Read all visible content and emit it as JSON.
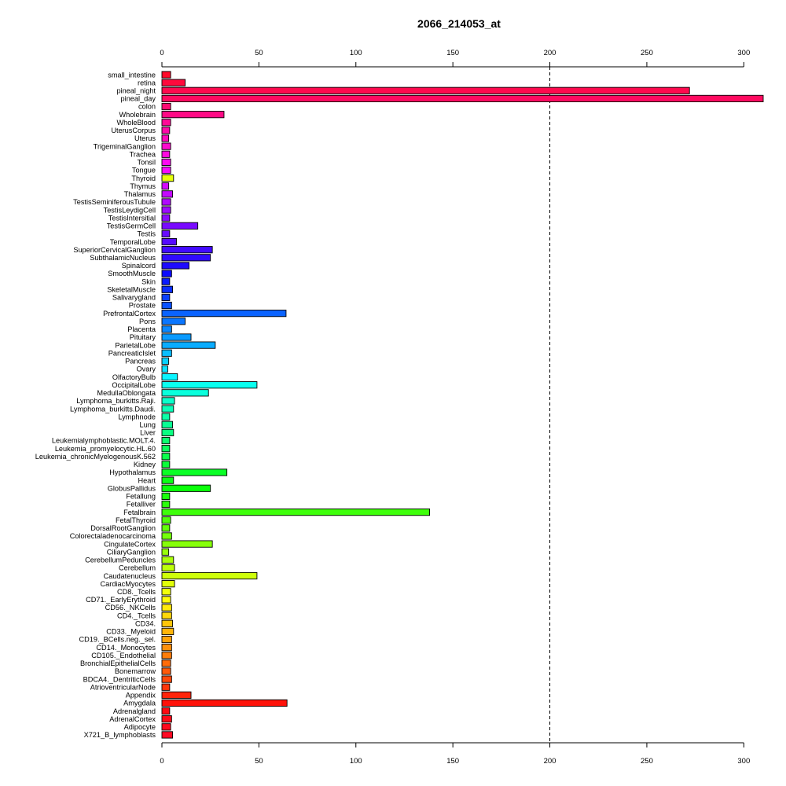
{
  "chart_data": {
    "type": "bar",
    "orientation": "horizontal",
    "title": "2066_214053_at",
    "xlabel": "",
    "ylabel": "",
    "xlim": [
      0,
      310
    ],
    "xticks": [
      0,
      50,
      100,
      150,
      200,
      250,
      300
    ],
    "xtick_labels": [
      "0",
      "50",
      "100",
      "150",
      "200",
      "250",
      "300"
    ],
    "axis_positions": [
      "top",
      "bottom"
    ],
    "reference_line": {
      "x": 200,
      "style": "dashed"
    },
    "grid": false,
    "legend": "none",
    "bar_outline_color": "#000000",
    "categories": [
      "small_intestine",
      "retina",
      "pineal_night",
      "pineal_day",
      "colon",
      "Wholebrain",
      "WholeBlood",
      "UterusCorpus",
      "Uterus",
      "TrigeminalGanglion",
      "Trachea",
      "Tonsil",
      "Tongue",
      "Thyroid",
      "Thymus",
      "Thalamus",
      "TestisSeminiferousTubule",
      "TestisLeydigCell",
      "TestisIntersitial",
      "TestisGermCell",
      "Testis",
      "TemporalLobe",
      "SuperiorCervicalGanglion",
      "SubthalamicNucleus",
      "Spinalcord",
      "SmoothMuscle",
      "Skin",
      "SkeletalMuscle",
      "Salivarygland",
      "Prostate",
      "PrefrontalCortex",
      "Pons",
      "Placenta",
      "Pituitary",
      "ParietalLobe",
      "PancreaticIslet",
      "Pancreas",
      "Ovary",
      "OlfactoryBulb",
      "OccipitalLobe",
      "MedullaOblongata",
      "Lymphoma_burkitts.Raji.",
      "Lymphoma_burkitts.Daudi.",
      "Lymphnode",
      "Lung",
      "Liver",
      "Leukemialymphoblastic.MOLT.4.",
      "Leukemia_promyelocytic.HL.60",
      "Leukemia_chronicMyelogenousK.562",
      "Kidney",
      "Hypothalamus",
      "Heart",
      "GlobusPallidus",
      "Fetallung",
      "Fetalliver",
      "Fetalbrain",
      "FetalThyroid",
      "DorsalRootGanglion",
      "Colorectaladenocarcinoma",
      "CingulateCortex",
      "CiliaryGanglion",
      "CerebellumPeduncles",
      "Cerebellum",
      "Caudatenucleus",
      "CardiacMyocytes",
      "CD8._Tcells",
      "CD71._EarlyErythroid",
      "CD56._NKCells",
      "CD4._Tcells",
      "CD34.",
      "CD33._Myeloid",
      "CD19._BCells.neg._sel.",
      "CD14._Monocytes",
      "CD105._Endothelial",
      "BronchialEpithelialCells",
      "Bonemarrow",
      "BDCA4._DentriticCells",
      "AtrioventricularNode",
      "Appendix",
      "Amygdala",
      "Adrenalgland",
      "AdrenalCortex",
      "Adipocyte",
      "X721_B_lymphoblasts"
    ],
    "values": [
      4.5,
      12,
      272,
      310,
      4.5,
      32,
      4.5,
      4,
      3.5,
      4.5,
      4,
      4.5,
      4.5,
      6,
      3.5,
      5.5,
      4.5,
      4.5,
      4,
      18.5,
      4,
      7.5,
      26,
      25,
      14,
      5,
      4,
      5.5,
      4,
      5,
      64,
      12,
      5,
      15,
      27.5,
      5,
      3.5,
      3,
      8,
      49,
      24,
      6.5,
      6,
      4,
      5.5,
      6,
      4,
      4,
      4,
      4,
      33.5,
      6,
      25,
      4,
      4,
      138,
      4.5,
      4,
      5,
      26,
      3.5,
      6,
      6.5,
      49,
      6.5,
      4.5,
      4.5,
      5,
      5,
      5.5,
      6,
      5,
      5,
      5,
      4.5,
      4.5,
      5,
      4,
      15,
      64.5,
      4,
      5,
      4.5,
      5.5
    ],
    "colors": [
      "#ff0a2a",
      "#ff0a3c",
      "#ff0a4e",
      "#ff0a60",
      "#ff0a72",
      "#ff0a85",
      "#ff0a97",
      "#ff0aa9",
      "#ff0abb",
      "#ff0acd",
      "#ff0ae0",
      "#ff0af2",
      "#f80aff",
      "#e6ff0a",
      "#d40aff",
      "#c20aff",
      "#b00aff",
      "#9d0aff",
      "#8b0aff",
      "#790aff",
      "#670aff",
      "#550aff",
      "#420aff",
      "#300aff",
      "#1e0aff",
      "#0c0aff",
      "#0a1bff",
      "#0a2dff",
      "#0a3fff",
      "#0a51ff",
      "#0a63ff",
      "#0a76ff",
      "#0a88ff",
      "#0a9aff",
      "#0aacff",
      "#0abeff",
      "#0ad1ff",
      "#0ae3ff",
      "#0af5ff",
      "#0affef",
      "#0affdc",
      "#0affca",
      "#0affb8",
      "#0affa6",
      "#0aff94",
      "#0aff81",
      "#0aff6f",
      "#0aff5d",
      "#0aff4b",
      "#0aff39",
      "#0aff26",
      "#0aff14",
      "#0aff0a",
      "#1aff0a",
      "#2cff0a",
      "#3eff0a",
      "#50ff0a",
      "#62ff0a",
      "#74ff0a",
      "#86ff0a",
      "#98ff0a",
      "#aaff0a",
      "#bcff0a",
      "#ceff0a",
      "#e0ff0a",
      "#f2ff0a",
      "#fffc0a",
      "#ffea0a",
      "#ffd80a",
      "#ffc60a",
      "#ffb40a",
      "#ffa20a",
      "#ff900a",
      "#ff7e0a",
      "#ff6c0a",
      "#ff5a0a",
      "#ff480a",
      "#ff360a",
      "#ff240a",
      "#ff120a",
      "#ff0a12",
      "#ff0a18",
      "#ff0a1e",
      "#ff0a24"
    ]
  }
}
